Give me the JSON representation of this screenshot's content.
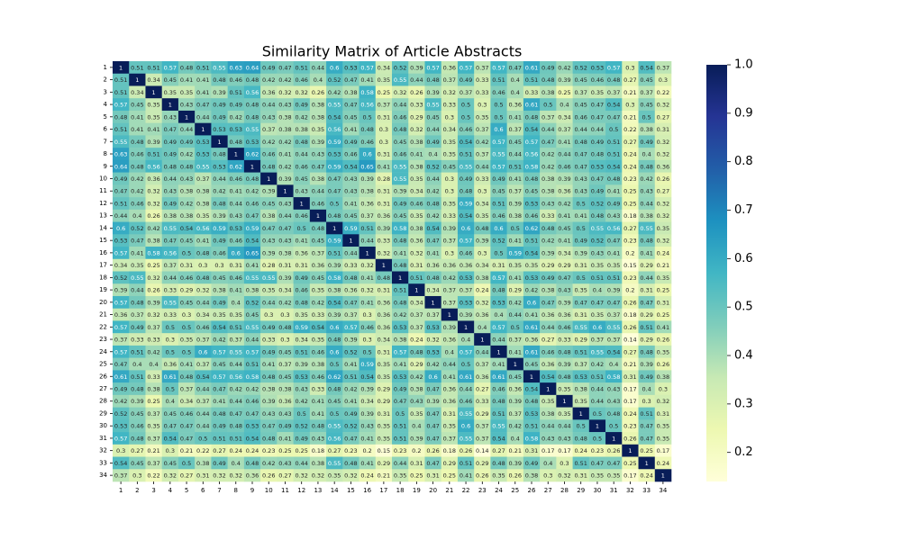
{
  "chart_data": {
    "type": "heatmap",
    "title": "Similarity Matrix of Article Abstracts",
    "categories": [
      "1",
      "2",
      "3",
      "4",
      "5",
      "6",
      "7",
      "8",
      "9",
      "10",
      "11",
      "12",
      "13",
      "14",
      "15",
      "16",
      "17",
      "18",
      "19",
      "20",
      "21",
      "22",
      "23",
      "24",
      "25",
      "26",
      "27",
      "28",
      "29",
      "30",
      "31",
      "32",
      "33",
      "34"
    ],
    "values": [
      [
        1,
        0.51,
        0.51,
        0.57,
        0.48,
        0.51,
        0.55,
        0.63,
        0.64,
        0.49,
        0.47,
        0.51,
        0.44,
        0.6,
        0.53,
        0.57,
        0.34,
        0.52,
        0.39,
        0.57,
        0.36,
        0.57,
        0.37,
        0.57,
        0.47,
        0.61,
        0.49,
        0.42,
        0.52,
        0.53,
        0.57,
        0.3,
        0.54,
        0.37
      ],
      [
        0.51,
        1,
        0.34,
        0.45,
        0.41,
        0.41,
        0.48,
        0.46,
        0.48,
        0.42,
        0.42,
        0.46,
        0.4,
        0.52,
        0.47,
        0.41,
        0.35,
        0.55,
        0.44,
        0.48,
        0.37,
        0.49,
        0.33,
        0.51,
        0.4,
        0.51,
        0.48,
        0.39,
        0.45,
        0.46,
        0.48,
        0.27,
        0.45,
        0.3
      ],
      [
        0.51,
        0.34,
        1,
        0.35,
        0.35,
        0.41,
        0.39,
        0.51,
        0.56,
        0.36,
        0.32,
        0.32,
        0.26,
        0.42,
        0.38,
        0.58,
        0.25,
        0.32,
        0.26,
        0.39,
        0.32,
        0.37,
        0.33,
        0.46,
        0.4,
        0.33,
        0.38,
        0.25,
        0.37,
        0.35,
        0.37,
        0.21,
        0.37,
        0.22
      ],
      [
        0.57,
        0.45,
        0.35,
        1,
        0.43,
        0.47,
        0.49,
        0.49,
        0.48,
        0.44,
        0.43,
        0.49,
        0.38,
        0.55,
        0.47,
        0.56,
        0.37,
        0.44,
        0.33,
        0.55,
        0.33,
        0.5,
        0.3,
        0.5,
        0.36,
        0.61,
        0.5,
        0.4,
        0.45,
        0.47,
        0.54,
        0.3,
        0.45,
        0.32
      ],
      [
        0.48,
        0.41,
        0.35,
        0.43,
        1,
        0.44,
        0.49,
        0.42,
        0.48,
        0.43,
        0.38,
        0.42,
        0.38,
        0.54,
        0.45,
        0.5,
        0.31,
        0.46,
        0.29,
        0.45,
        0.3,
        0.5,
        0.35,
        0.5,
        0.41,
        0.48,
        0.37,
        0.34,
        0.46,
        0.47,
        0.47,
        0.21,
        0.5,
        0.27
      ],
      [
        0.51,
        0.41,
        0.41,
        0.47,
        0.44,
        1,
        0.53,
        0.53,
        0.55,
        0.37,
        0.38,
        0.38,
        0.35,
        0.56,
        0.41,
        0.48,
        0.3,
        0.48,
        0.32,
        0.44,
        0.34,
        0.46,
        0.37,
        0.6,
        0.37,
        0.54,
        0.44,
        0.37,
        0.44,
        0.44,
        0.5,
        0.22,
        0.38,
        0.31
      ],
      [
        0.55,
        0.48,
        0.39,
        0.49,
        0.49,
        0.53,
        1,
        0.48,
        0.53,
        0.42,
        0.42,
        0.48,
        0.39,
        0.59,
        0.49,
        0.46,
        0.3,
        0.45,
        0.38,
        0.49,
        0.35,
        0.54,
        0.42,
        0.57,
        0.45,
        0.57,
        0.47,
        0.41,
        0.48,
        0.49,
        0.51,
        0.27,
        0.49,
        0.32
      ],
      [
        0.63,
        0.46,
        0.51,
        0.49,
        0.42,
        0.53,
        0.48,
        1,
        0.62,
        0.46,
        0.41,
        0.44,
        0.43,
        0.53,
        0.46,
        0.6,
        0.31,
        0.46,
        0.41,
        0.4,
        0.35,
        0.51,
        0.37,
        0.55,
        0.44,
        0.56,
        0.42,
        0.44,
        0.47,
        0.48,
        0.51,
        0.24,
        0.4,
        0.32
      ],
      [
        0.64,
        0.48,
        0.56,
        0.48,
        0.48,
        0.55,
        0.53,
        0.62,
        1,
        0.48,
        0.42,
        0.46,
        0.47,
        0.59,
        0.54,
        0.65,
        0.41,
        0.55,
        0.38,
        0.52,
        0.45,
        0.55,
        0.44,
        0.57,
        0.51,
        0.58,
        0.42,
        0.46,
        0.47,
        0.53,
        0.54,
        0.24,
        0.48,
        0.36
      ],
      [
        0.49,
        0.42,
        0.36,
        0.44,
        0.43,
        0.37,
        0.44,
        0.46,
        0.48,
        1,
        0.39,
        0.45,
        0.38,
        0.47,
        0.43,
        0.39,
        0.28,
        0.55,
        0.35,
        0.44,
        0.3,
        0.49,
        0.33,
        0.49,
        0.41,
        0.48,
        0.38,
        0.39,
        0.43,
        0.47,
        0.48,
        0.23,
        0.42,
        0.26
      ],
      [
        0.47,
        0.42,
        0.32,
        0.43,
        0.38,
        0.38,
        0.42,
        0.41,
        0.42,
        0.39,
        1,
        0.43,
        0.44,
        0.47,
        0.43,
        0.38,
        0.31,
        0.39,
        0.34,
        0.42,
        0.3,
        0.48,
        0.3,
        0.45,
        0.37,
        0.45,
        0.38,
        0.36,
        0.43,
        0.49,
        0.41,
        0.25,
        0.43,
        0.27
      ],
      [
        0.51,
        0.46,
        0.32,
        0.49,
        0.42,
        0.38,
        0.48,
        0.44,
        0.46,
        0.45,
        0.43,
        1,
        0.46,
        0.5,
        0.41,
        0.36,
        0.31,
        0.49,
        0.46,
        0.48,
        0.35,
        0.59,
        0.34,
        0.51,
        0.39,
        0.53,
        0.43,
        0.42,
        0.5,
        0.52,
        0.49,
        0.25,
        0.44,
        0.32
      ],
      [
        0.44,
        0.4,
        0.26,
        0.38,
        0.38,
        0.35,
        0.39,
        0.43,
        0.47,
        0.38,
        0.44,
        0.46,
        1,
        0.48,
        0.45,
        0.37,
        0.36,
        0.45,
        0.35,
        0.42,
        0.33,
        0.54,
        0.35,
        0.46,
        0.38,
        0.46,
        0.33,
        0.41,
        0.41,
        0.48,
        0.43,
        0.18,
        0.38,
        0.32
      ],
      [
        0.6,
        0.52,
        0.42,
        0.55,
        0.54,
        0.56,
        0.59,
        0.53,
        0.59,
        0.47,
        0.47,
        0.5,
        0.48,
        1,
        0.59,
        0.51,
        0.39,
        0.58,
        0.38,
        0.54,
        0.39,
        0.6,
        0.48,
        0.6,
        0.5,
        0.62,
        0.48,
        0.45,
        0.5,
        0.55,
        0.56,
        0.27,
        0.55,
        0.35
      ],
      [
        0.53,
        0.47,
        0.38,
        0.47,
        0.45,
        0.41,
        0.49,
        0.46,
        0.54,
        0.43,
        0.43,
        0.41,
        0.45,
        0.59,
        1,
        0.44,
        0.33,
        0.48,
        0.36,
        0.47,
        0.37,
        0.57,
        0.39,
        0.52,
        0.41,
        0.51,
        0.42,
        0.41,
        0.49,
        0.52,
        0.47,
        0.23,
        0.48,
        0.32
      ],
      [
        0.57,
        0.41,
        0.58,
        0.56,
        0.5,
        0.48,
        0.46,
        0.6,
        0.65,
        0.39,
        0.38,
        0.36,
        0.37,
        0.51,
        0.44,
        1,
        0.32,
        0.41,
        0.32,
        0.41,
        0.3,
        0.46,
        0.3,
        0.5,
        0.59,
        0.54,
        0.39,
        0.34,
        0.39,
        0.43,
        0.41,
        0.2,
        0.41,
        0.24
      ],
      [
        0.34,
        0.35,
        0.25,
        0.37,
        0.31,
        0.3,
        0.3,
        0.31,
        0.41,
        0.28,
        0.31,
        0.31,
        0.36,
        0.39,
        0.33,
        0.32,
        1,
        0.48,
        0.31,
        0.36,
        0.36,
        0.36,
        0.34,
        0.31,
        0.35,
        0.35,
        0.29,
        0.29,
        0.31,
        0.35,
        0.35,
        0.15,
        0.29,
        0.21
      ],
      [
        0.52,
        0.55,
        0.32,
        0.44,
        0.46,
        0.48,
        0.45,
        0.46,
        0.55,
        0.55,
        0.39,
        0.49,
        0.45,
        0.58,
        0.48,
        0.41,
        0.48,
        1,
        0.51,
        0.48,
        0.42,
        0.53,
        0.38,
        0.57,
        0.41,
        0.53,
        0.49,
        0.47,
        0.5,
        0.51,
        0.51,
        0.23,
        0.44,
        0.35
      ],
      [
        0.39,
        0.44,
        0.26,
        0.33,
        0.29,
        0.32,
        0.38,
        0.41,
        0.38,
        0.35,
        0.34,
        0.46,
        0.35,
        0.38,
        0.36,
        0.32,
        0.31,
        0.51,
        1,
        0.34,
        0.37,
        0.37,
        0.24,
        0.48,
        0.29,
        0.42,
        0.38,
        0.43,
        0.35,
        0.4,
        0.39,
        0.2,
        0.31,
        0.25
      ],
      [
        0.57,
        0.48,
        0.39,
        0.55,
        0.45,
        0.44,
        0.49,
        0.4,
        0.52,
        0.44,
        0.42,
        0.48,
        0.42,
        0.54,
        0.47,
        0.41,
        0.36,
        0.48,
        0.34,
        1,
        0.37,
        0.53,
        0.32,
        0.53,
        0.42,
        0.6,
        0.47,
        0.39,
        0.47,
        0.47,
        0.47,
        0.26,
        0.47,
        0.31
      ],
      [
        0.36,
        0.37,
        0.32,
        0.33,
        0.3,
        0.34,
        0.35,
        0.35,
        0.45,
        0.3,
        0.3,
        0.35,
        0.33,
        0.39,
        0.37,
        0.3,
        0.36,
        0.42,
        0.37,
        0.37,
        1,
        0.39,
        0.36,
        0.4,
        0.44,
        0.41,
        0.36,
        0.36,
        0.31,
        0.35,
        0.37,
        0.18,
        0.29,
        0.25
      ],
      [
        0.57,
        0.49,
        0.37,
        0.5,
        0.5,
        0.46,
        0.54,
        0.51,
        0.55,
        0.49,
        0.48,
        0.59,
        0.54,
        0.6,
        0.57,
        0.46,
        0.36,
        0.53,
        0.37,
        0.53,
        0.39,
        1,
        0.4,
        0.57,
        0.5,
        0.61,
        0.44,
        0.46,
        0.55,
        0.6,
        0.55,
        0.26,
        0.51,
        0.41
      ],
      [
        0.37,
        0.33,
        0.33,
        0.3,
        0.35,
        0.37,
        0.42,
        0.37,
        0.44,
        0.33,
        0.3,
        0.34,
        0.35,
        0.48,
        0.39,
        0.3,
        0.34,
        0.38,
        0.24,
        0.32,
        0.36,
        0.4,
        1,
        0.44,
        0.37,
        0.36,
        0.27,
        0.33,
        0.29,
        0.37,
        0.37,
        0.14,
        0.29,
        0.26
      ],
      [
        0.57,
        0.51,
        0.42,
        0.5,
        0.5,
        0.6,
        0.57,
        0.55,
        0.57,
        0.49,
        0.45,
        0.51,
        0.46,
        0.6,
        0.52,
        0.5,
        0.31,
        0.57,
        0.48,
        0.53,
        0.4,
        0.57,
        0.44,
        1,
        0.41,
        0.61,
        0.46,
        0.48,
        0.51,
        0.55,
        0.54,
        0.27,
        0.48,
        0.35
      ],
      [
        0.47,
        0.4,
        0.4,
        0.36,
        0.41,
        0.37,
        0.45,
        0.44,
        0.51,
        0.41,
        0.37,
        0.39,
        0.38,
        0.5,
        0.41,
        0.59,
        0.35,
        0.41,
        0.29,
        0.42,
        0.44,
        0.5,
        0.37,
        0.41,
        1,
        0.45,
        0.36,
        0.39,
        0.37,
        0.42,
        0.4,
        0.21,
        0.39,
        0.26
      ],
      [
        0.61,
        0.51,
        0.33,
        0.61,
        0.48,
        0.54,
        0.57,
        0.56,
        0.58,
        0.48,
        0.45,
        0.53,
        0.46,
        0.62,
        0.51,
        0.54,
        0.35,
        0.53,
        0.42,
        0.6,
        0.41,
        0.61,
        0.36,
        0.61,
        0.45,
        1,
        0.54,
        0.48,
        0.53,
        0.51,
        0.58,
        0.31,
        0.49,
        0.38
      ],
      [
        0.49,
        0.48,
        0.38,
        0.5,
        0.37,
        0.44,
        0.47,
        0.42,
        0.42,
        0.38,
        0.38,
        0.43,
        0.33,
        0.48,
        0.42,
        0.39,
        0.29,
        0.49,
        0.38,
        0.47,
        0.36,
        0.44,
        0.27,
        0.46,
        0.36,
        0.54,
        1,
        0.35,
        0.38,
        0.44,
        0.43,
        0.17,
        0.4,
        0.3
      ],
      [
        0.42,
        0.39,
        0.25,
        0.4,
        0.34,
        0.37,
        0.41,
        0.44,
        0.46,
        0.39,
        0.36,
        0.42,
        0.41,
        0.45,
        0.41,
        0.34,
        0.29,
        0.47,
        0.43,
        0.39,
        0.36,
        0.46,
        0.33,
        0.48,
        0.39,
        0.48,
        0.35,
        1,
        0.35,
        0.44,
        0.43,
        0.17,
        0.3,
        0.32
      ],
      [
        0.52,
        0.45,
        0.37,
        0.45,
        0.46,
        0.44,
        0.48,
        0.47,
        0.47,
        0.43,
        0.43,
        0.5,
        0.41,
        0.5,
        0.49,
        0.39,
        0.31,
        0.5,
        0.35,
        0.47,
        0.31,
        0.55,
        0.29,
        0.51,
        0.37,
        0.53,
        0.38,
        0.35,
        1,
        0.5,
        0.48,
        0.24,
        0.51,
        0.31
      ],
      [
        0.53,
        0.46,
        0.35,
        0.47,
        0.47,
        0.44,
        0.49,
        0.48,
        0.53,
        0.47,
        0.49,
        0.52,
        0.48,
        0.55,
        0.52,
        0.43,
        0.35,
        0.51,
        0.4,
        0.47,
        0.35,
        0.6,
        0.37,
        0.55,
        0.42,
        0.51,
        0.44,
        0.44,
        0.5,
        1,
        0.5,
        0.23,
        0.47,
        0.35
      ],
      [
        0.57,
        0.48,
        0.37,
        0.54,
        0.47,
        0.5,
        0.51,
        0.51,
        0.54,
        0.48,
        0.41,
        0.49,
        0.43,
        0.56,
        0.47,
        0.41,
        0.35,
        0.51,
        0.39,
        0.47,
        0.37,
        0.55,
        0.37,
        0.54,
        0.4,
        0.58,
        0.43,
        0.43,
        0.48,
        0.5,
        1,
        0.26,
        0.47,
        0.35
      ],
      [
        0.3,
        0.27,
        0.21,
        0.3,
        0.21,
        0.22,
        0.27,
        0.24,
        0.24,
        0.23,
        0.25,
        0.25,
        0.18,
        0.27,
        0.23,
        0.2,
        0.15,
        0.23,
        0.2,
        0.26,
        0.18,
        0.26,
        0.14,
        0.27,
        0.21,
        0.31,
        0.17,
        0.17,
        0.24,
        0.23,
        0.26,
        1,
        0.25,
        0.17
      ],
      [
        0.54,
        0.45,
        0.37,
        0.45,
        0.5,
        0.38,
        0.49,
        0.4,
        0.48,
        0.42,
        0.43,
        0.44,
        0.38,
        0.55,
        0.48,
        0.41,
        0.29,
        0.44,
        0.31,
        0.47,
        0.29,
        0.51,
        0.29,
        0.48,
        0.39,
        0.49,
        0.4,
        0.3,
        0.51,
        0.47,
        0.47,
        0.25,
        1,
        0.24
      ],
      [
        0.37,
        0.3,
        0.22,
        0.32,
        0.27,
        0.31,
        0.32,
        0.32,
        0.36,
        0.26,
        0.27,
        0.32,
        0.32,
        0.35,
        0.32,
        0.24,
        0.21,
        0.35,
        0.25,
        0.31,
        0.25,
        0.41,
        0.26,
        0.35,
        0.26,
        0.38,
        0.3,
        0.32,
        0.31,
        0.35,
        0.35,
        0.17,
        0.24,
        1
      ]
    ],
    "colormap": "YlGnBu",
    "clim": [
      0.14,
      1
    ],
    "cticks": [
      0.2,
      0.3,
      0.4,
      0.5,
      0.6,
      0.7,
      0.8,
      0.9,
      {
        "value": 1,
        "label": "1.0"
      }
    ],
    "annotate": true
  }
}
